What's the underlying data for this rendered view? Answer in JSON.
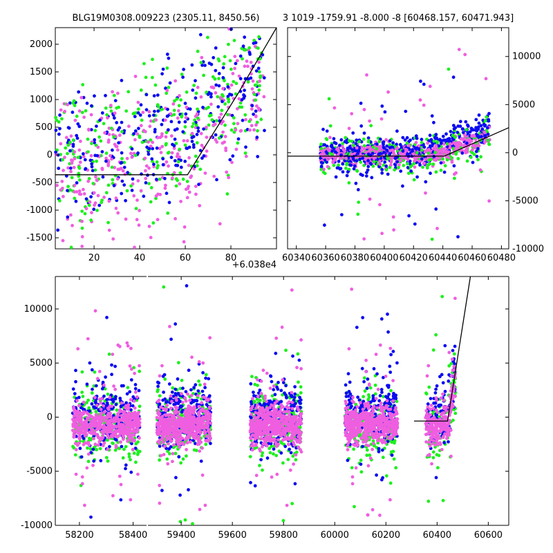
{
  "title_left": "BLG19M0308.009223 (2305.11, 8450.56)",
  "title_right": "3 1019 -1759.91 -8.000 -8 [60468.157, 60471.943]",
  "offset_label": "+6.038e4",
  "colors": {
    "blue": "#0b0bf0",
    "green": "#1df01d",
    "pink": "#ef5ee0",
    "model": "#000000"
  },
  "chart_data": [
    {
      "id": "top-left",
      "type": "scatter",
      "xlim": [
        3,
        100
      ],
      "ylim": [
        -1700,
        2300
      ],
      "xticks": [
        20,
        40,
        60,
        80
      ],
      "yticks": [
        -1500,
        -1000,
        -500,
        0,
        500,
        1000,
        1500,
        2000
      ],
      "ytick_side": "left",
      "model_line": [
        [
          3,
          -360
        ],
        [
          61,
          -360
        ],
        [
          83,
          1100
        ],
        [
          100,
          2300
        ]
      ],
      "x_offset_label": true
    },
    {
      "id": "top-right",
      "type": "scatter",
      "xlim": [
        60334,
        60485
      ],
      "ylim": [
        -10000,
        13000
      ],
      "xticks": [
        60340,
        60360,
        60380,
        60400,
        60420,
        60440,
        60460,
        60480
      ],
      "yticks": [
        -10000,
        -5000,
        0,
        5000,
        10000
      ],
      "ytick_side": "right",
      "model_line": [
        [
          60334,
          -360
        ],
        [
          60441,
          -360
        ],
        [
          60485,
          2600
        ]
      ]
    },
    {
      "id": "bottom",
      "type": "scatter",
      "ylim": [
        -10000,
        13000
      ],
      "yticks": [
        -10000,
        -5000,
        0,
        5000,
        10000
      ],
      "ytick_side": "left",
      "segments": [
        {
          "xlim": [
            58110,
            58450
          ],
          "xticks": [
            58200,
            58400
          ]
        },
        {
          "xlim": [
            59270,
            60680
          ],
          "xticks": [
            59400,
            59600,
            59800,
            60000,
            60200,
            60400,
            60600
          ]
        }
      ],
      "model_line": [
        [
          60310,
          -360
        ],
        [
          60441,
          -360
        ],
        [
          60530,
          13000
        ]
      ],
      "seasons": [
        {
          "start": 58175,
          "end": 58425
        },
        {
          "start": 59305,
          "end": 59515
        },
        {
          "start": 59670,
          "end": 59870
        },
        {
          "start": 60040,
          "end": 60245
        },
        {
          "start": 60355,
          "end": 60472
        }
      ]
    }
  ]
}
